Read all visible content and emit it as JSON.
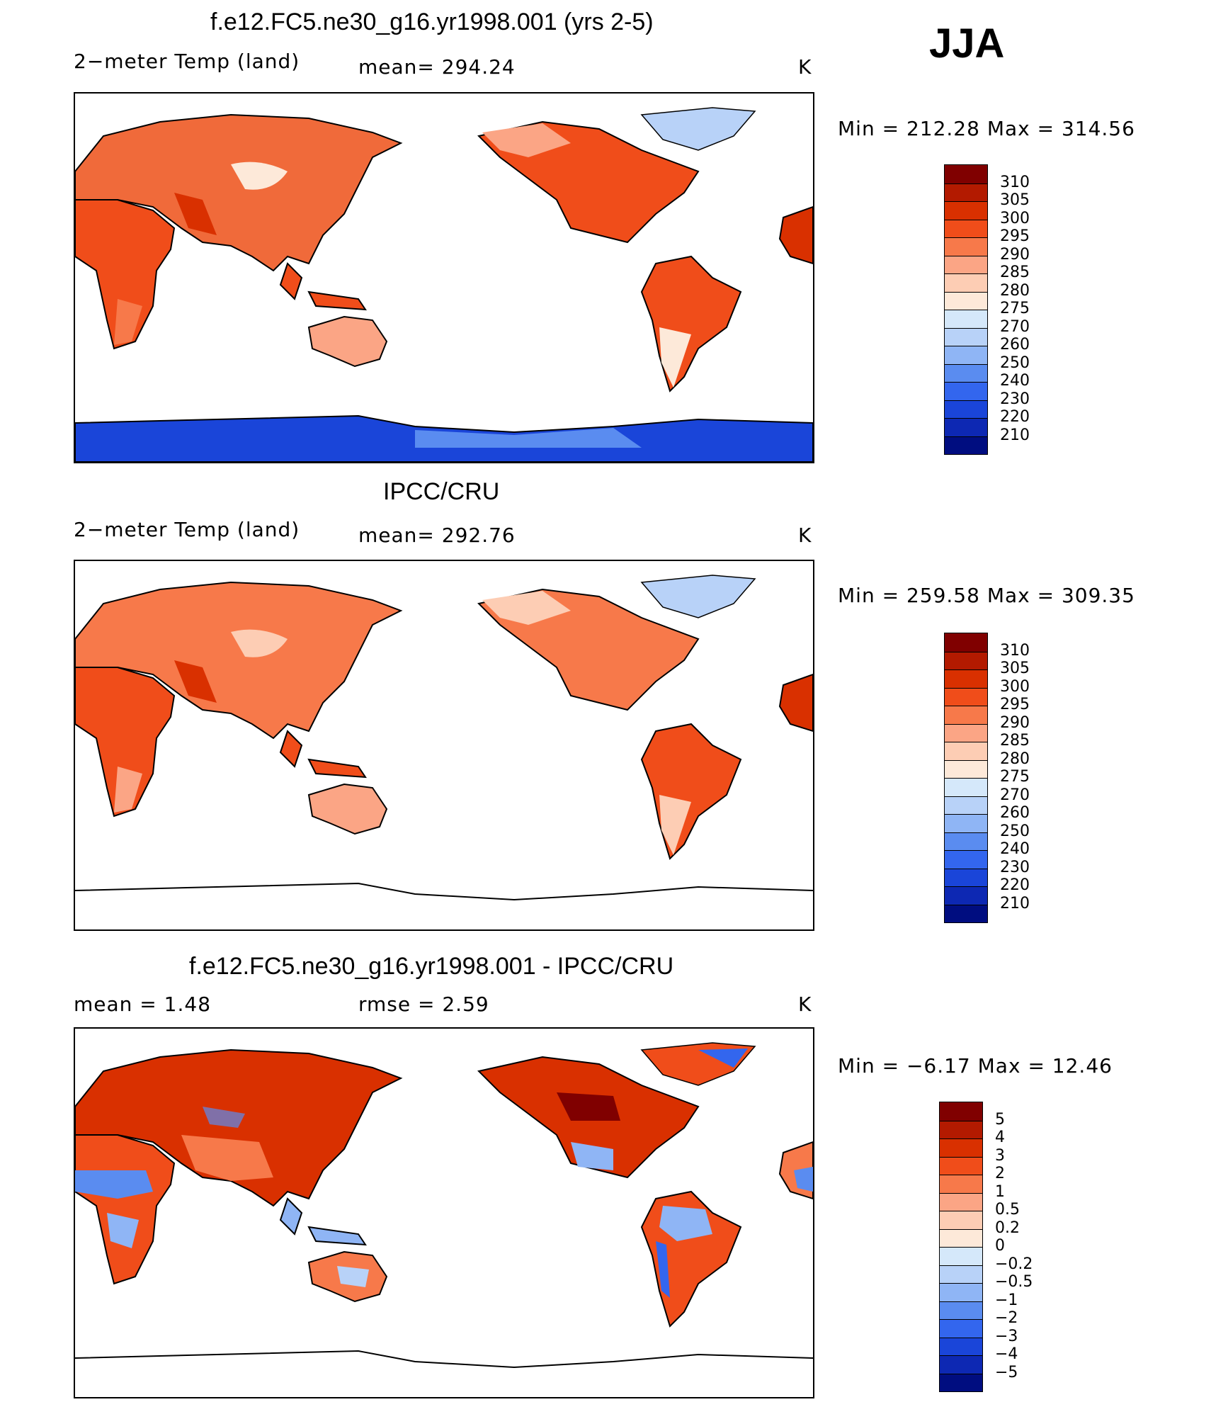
{
  "season": "JJA",
  "panels": [
    {
      "title": "f.e12.FC5.ne30_g16.yr1998.001 (yrs 2-5)",
      "left_label": "2−meter Temp (land)",
      "center_label": "mean=  294.24",
      "right_label": "K",
      "minmax": "Min  =  212.28  Max  =  314.56"
    },
    {
      "title": "IPCC/CRU",
      "left_label": "2−meter Temp (land)",
      "center_label": "mean=  292.76",
      "right_label": "K",
      "minmax": "Min  =  259.58  Max  =  309.35"
    },
    {
      "title": "f.e12.FC5.ne30_g16.yr1998.001 - IPCC/CRU",
      "left_label": "mean  =     1.48",
      "center_label": "rmse  =     2.59",
      "right_label": "K",
      "minmax": "Min  =    −6.17  Max  =     12.46"
    }
  ],
  "colorbars": {
    "temperature": {
      "labels": [
        "310",
        "305",
        "300",
        "295",
        "290",
        "285",
        "280",
        "275",
        "270",
        "260",
        "250",
        "240",
        "230",
        "220",
        "210"
      ],
      "colors": [
        "#800000",
        "#b31a00",
        "#d93000",
        "#f04d1a",
        "#f7794a",
        "#fba585",
        "#fdcdb4",
        "#fde9d9",
        "#d5e8fa",
        "#b8d2f8",
        "#8fb5f5",
        "#5a8cf0",
        "#3366ee",
        "#1a45d9",
        "#0d28b3",
        "#000d80"
      ]
    },
    "difference": {
      "labels": [
        "5",
        "4",
        "3",
        "2",
        "1",
        "0.5",
        "0.2",
        "0",
        "−0.2",
        "−0.5",
        "−1",
        "−2",
        "−3",
        "−4",
        "−5"
      ],
      "colors": [
        "#800000",
        "#b31a00",
        "#d93000",
        "#f04d1a",
        "#f7794a",
        "#fba585",
        "#fdcdb4",
        "#fde9d9",
        "#d5e8fa",
        "#b8d2f8",
        "#8fb5f5",
        "#5a8cf0",
        "#3366ee",
        "#1a45d9",
        "#0d28b3",
        "#000d80"
      ]
    }
  }
}
